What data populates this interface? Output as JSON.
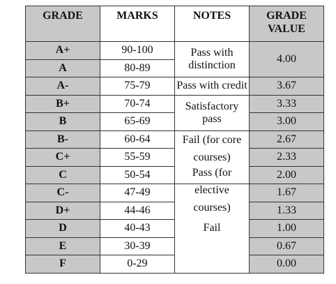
{
  "table": {
    "header": [
      "GRADE",
      "MARKS",
      "NOTES",
      "GRADE VALUE"
    ],
    "rows": [
      [
        "A+",
        "90-100"
      ],
      [
        "A",
        "80-89"
      ],
      [
        "A-",
        "75-79"
      ],
      [
        "B+",
        "70-74"
      ],
      [
        "B",
        "65-69"
      ],
      [
        "B-",
        "60-64"
      ],
      [
        "C+",
        "55-59"
      ],
      [
        "C",
        "50-54"
      ],
      [
        "C-",
        "47-49"
      ],
      [
        "D+",
        "44-46"
      ],
      [
        "D",
        "40-43"
      ],
      [
        "E",
        "30-39"
      ],
      [
        "F",
        "0-29"
      ]
    ],
    "notes": [
      "Pass with distinction",
      "Pass with credit",
      "Satisfactory pass",
      "Fail (for core courses)",
      "Pass (for elective courses)",
      "Fail"
    ],
    "grade_values": [
      "4.00",
      "3.67",
      "3.33",
      "3.00",
      "2.67",
      "2.33",
      "2.00",
      "1.67",
      "1.33",
      "1.00",
      "0.67",
      "0.00"
    ]
  }
}
